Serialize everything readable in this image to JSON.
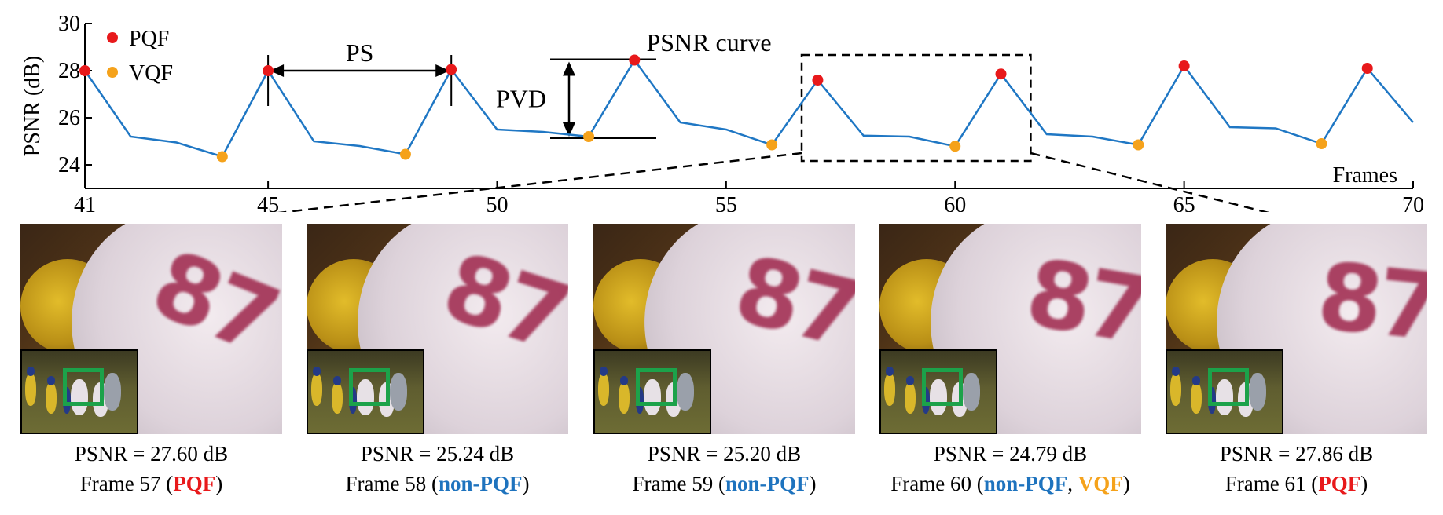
{
  "chart_data": {
    "type": "line",
    "ylabel": "PSNR (dB)",
    "xlabel": "Frames",
    "xlim": [
      41,
      70
    ],
    "ylim": [
      23,
      30
    ],
    "xticks": [
      41,
      45,
      50,
      55,
      60,
      65,
      70
    ],
    "yticks": [
      24,
      26,
      28,
      30
    ],
    "x": [
      41,
      42,
      43,
      44,
      45,
      46,
      47,
      48,
      49,
      50,
      51,
      52,
      53,
      54,
      55,
      56,
      57,
      58,
      59,
      60,
      61,
      62,
      63,
      64,
      65,
      66,
      67,
      68,
      69,
      70
    ],
    "y": [
      28.0,
      25.2,
      24.95,
      24.35,
      28.0,
      25.0,
      24.8,
      24.45,
      28.05,
      25.5,
      25.4,
      25.2,
      28.45,
      25.8,
      25.5,
      24.85,
      27.6,
      25.24,
      25.2,
      24.79,
      27.86,
      25.3,
      25.2,
      24.85,
      28.2,
      25.6,
      25.55,
      24.9,
      28.1,
      25.8
    ],
    "series": [
      {
        "name": "PQF",
        "x": [
          41,
          45,
          49,
          53,
          57,
          61,
          65,
          69
        ],
        "y": [
          28.0,
          28.0,
          28.05,
          28.45,
          27.6,
          27.86,
          28.2,
          28.1
        ],
        "color": "#e8191b"
      },
      {
        "name": "VQF",
        "x": [
          44,
          48,
          52,
          56,
          60,
          64,
          68
        ],
        "y": [
          24.35,
          24.45,
          25.2,
          24.85,
          24.79,
          24.85,
          24.9
        ],
        "color": "#f5a21b"
      }
    ],
    "line_color": "#1f77c4",
    "legend": "top-left",
    "annotations": [
      "PS",
      "PVD",
      "PSNR curve"
    ]
  },
  "panels": [
    {
      "psnr": "PSNR = 27.60 dB",
      "frame": "Frame 57",
      "tag1": "PQF",
      "tag2": "",
      "kind": "pqf"
    },
    {
      "psnr": "PSNR = 25.24 dB",
      "frame": "Frame 58",
      "tag1": "non-PQF",
      "tag2": "",
      "kind": "npqf"
    },
    {
      "psnr": "PSNR = 25.20 dB",
      "frame": "Frame 59",
      "tag1": "non-PQF",
      "tag2": "",
      "kind": "npqf"
    },
    {
      "psnr": "PSNR = 24.79 dB",
      "frame": "Frame 60",
      "tag1": "non-PQF",
      "tag2": "VQF",
      "kind": "npqf"
    },
    {
      "psnr": "PSNR = 27.86 dB",
      "frame": "Frame 61",
      "tag1": "PQF",
      "tag2": "",
      "kind": "pqf"
    }
  ],
  "jersey_number": "87",
  "colors": {
    "pqf": "#e8191b",
    "non_pqf": "#1e73be",
    "vqf": "#f5a21b",
    "inset_box": "#1ca24a"
  }
}
